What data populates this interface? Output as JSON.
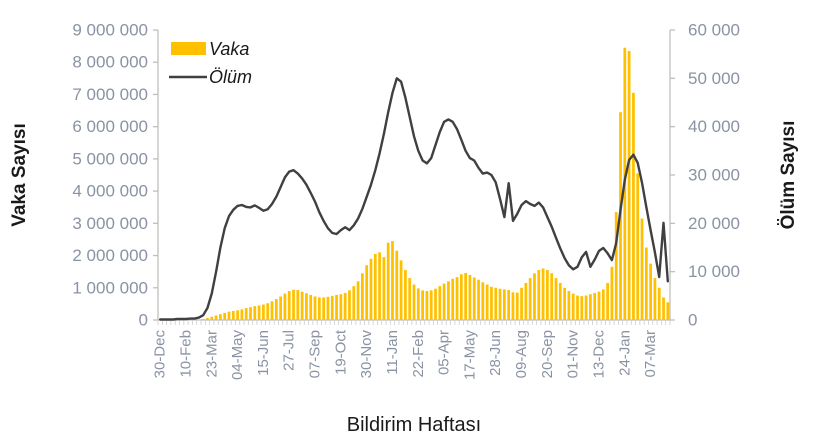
{
  "chart_data": {
    "type": "combo-bar-line",
    "title": "",
    "xlabel": "Bildirim Haftası",
    "ylabel_left": "Vaka Sayısı",
    "ylabel_right": "Ölüm Sayısı",
    "axis_color": "#bfbfbf",
    "category_tick_color": "#cccccc",
    "x_tick_interval": 6,
    "x_tick_labels": [
      "30-Dec",
      "10-Feb",
      "23-Mar",
      "04-May",
      "15-Jun",
      "27-Jul",
      "07-Sep",
      "19-Oct",
      "30-Nov",
      "11-Jan",
      "22-Feb",
      "05-Apr",
      "17-May",
      "28-Jun",
      "09-Aug",
      "20-Sep",
      "01-Nov",
      "13-Dec",
      "24-Jan",
      "07-Mar"
    ],
    "left_axis": {
      "min": 0,
      "max": 9000000,
      "step": 1000000,
      "tick_labels": [
        "9 000 000",
        "8 000 000",
        "7 000 000",
        "6 000 000",
        "5 000 000",
        "4 000 000",
        "3 000 000",
        "2 000 000",
        "1 000 000",
        "0"
      ]
    },
    "right_axis": {
      "min": 0,
      "max": 60000,
      "step": 10000,
      "tick_labels": [
        "60 000",
        "50 000",
        "40 000",
        "30 000",
        "20 000",
        "10 000",
        "0"
      ]
    },
    "legend": [
      {
        "label": "Vaka",
        "type": "bar",
        "color": "#FFC000"
      },
      {
        "label": "Ölüm",
        "type": "line",
        "color": "#404040"
      }
    ],
    "series": [
      {
        "name": "Vaka",
        "type": "bar",
        "axis": "left",
        "color": "#FFC000",
        "values": [
          1000,
          1000,
          1000,
          2000,
          2000,
          3000,
          4000,
          5000,
          8000,
          15000,
          30000,
          60000,
          100000,
          140000,
          180000,
          220000,
          260000,
          280000,
          300000,
          330000,
          370000,
          400000,
          430000,
          450000,
          480000,
          520000,
          580000,
          650000,
          730000,
          820000,
          900000,
          940000,
          930000,
          880000,
          830000,
          780000,
          730000,
          700000,
          700000,
          720000,
          750000,
          780000,
          800000,
          840000,
          920000,
          1050000,
          1200000,
          1450000,
          1700000,
          1900000,
          2050000,
          2100000,
          1950000,
          2400000,
          2450000,
          2150000,
          1850000,
          1550000,
          1300000,
          1100000,
          980000,
          920000,
          900000,
          920000,
          970000,
          1050000,
          1130000,
          1200000,
          1280000,
          1330000,
          1420000,
          1460000,
          1400000,
          1320000,
          1250000,
          1170000,
          1100000,
          1030000,
          1000000,
          970000,
          950000,
          930000,
          860000,
          850000,
          1000000,
          1150000,
          1300000,
          1450000,
          1550000,
          1600000,
          1550000,
          1450000,
          1300000,
          1150000,
          1000000,
          900000,
          820000,
          760000,
          740000,
          760000,
          800000,
          840000,
          880000,
          950000,
          1150000,
          1650000,
          3350000,
          6450000,
          8450000,
          8350000,
          7050000,
          4550000,
          3150000,
          2250000,
          1750000,
          1300000,
          1000000,
          700000,
          550000
        ]
      },
      {
        "name": "Ölüm",
        "type": "line",
        "axis": "right",
        "color": "#404040",
        "values": [
          100,
          100,
          100,
          100,
          200,
          200,
          200,
          300,
          300,
          500,
          1000,
          2500,
          5500,
          10000,
          15000,
          19000,
          21500,
          22800,
          23600,
          23800,
          23400,
          23300,
          23700,
          23200,
          22600,
          22900,
          24000,
          25500,
          27500,
          29500,
          30700,
          31000,
          30300,
          29300,
          28000,
          26300,
          24500,
          22300,
          20500,
          19000,
          18000,
          17800,
          18600,
          19200,
          18600,
          19600,
          21000,
          23000,
          25500,
          28000,
          31000,
          34500,
          38500,
          43000,
          47000,
          50000,
          49300,
          46000,
          42000,
          38000,
          35000,
          33000,
          32400,
          33500,
          36200,
          38900,
          41000,
          41500,
          41000,
          39500,
          37300,
          35000,
          33500,
          33000,
          31500,
          30300,
          30500,
          30000,
          28500,
          25000,
          21300,
          28300,
          20500,
          22000,
          23800,
          24600,
          24000,
          23600,
          24300,
          23300,
          21300,
          19300,
          17000,
          14800,
          12800,
          11300,
          10500,
          11000,
          13000,
          14100,
          11000,
          12500,
          14300,
          14900,
          13800,
          12400,
          15900,
          22800,
          29000,
          33100,
          34200,
          32500,
          28400,
          23400,
          18600,
          14000,
          8900,
          20100,
          8000
        ]
      }
    ]
  }
}
